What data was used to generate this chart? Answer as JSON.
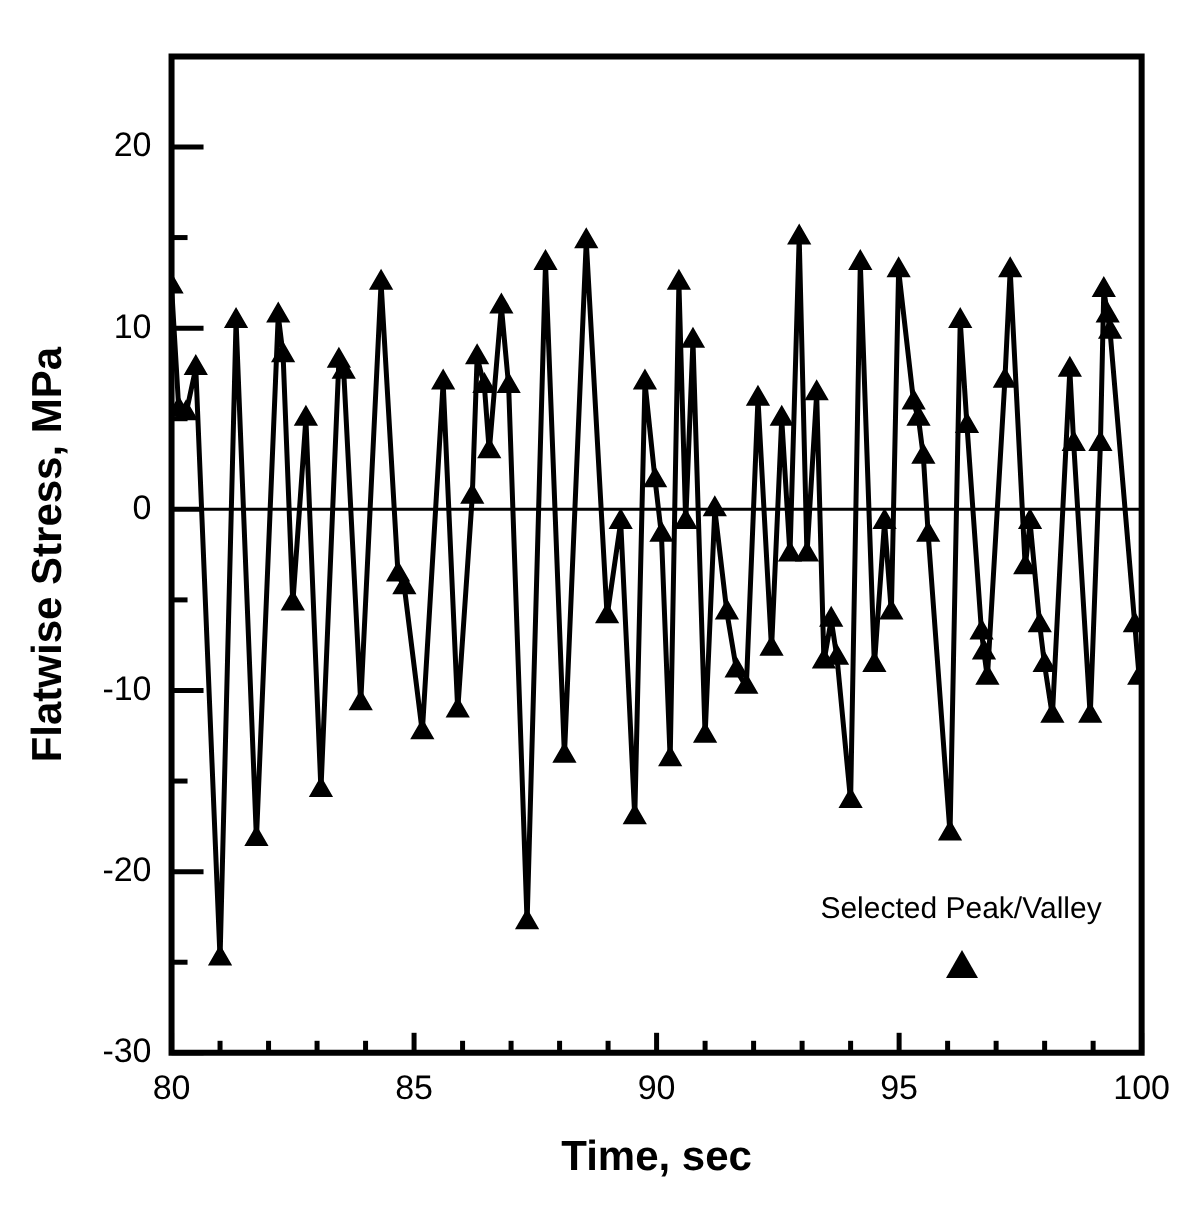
{
  "chart_data": {
    "type": "line",
    "xlabel": "Time, sec",
    "ylabel": "Flatwise Stress, MPa",
    "xlim": [
      80,
      100
    ],
    "xticks": [
      80,
      {
        "value": 81,
        "label": null
      },
      {
        "value": 82,
        "label": null
      },
      {
        "value": 83,
        "label": null
      },
      {
        "value": 84,
        "label": null
      },
      85,
      {
        "value": 86,
        "label": null
      },
      {
        "value": 87,
        "label": null
      },
      {
        "value": 88,
        "label": null
      },
      {
        "value": 89,
        "label": null
      },
      90,
      {
        "value": 91,
        "label": null
      },
      {
        "value": 92,
        "label": null
      },
      {
        "value": 93,
        "label": null
      },
      {
        "value": 94,
        "label": null
      },
      95,
      {
        "value": 96,
        "label": null
      },
      {
        "value": 97,
        "label": null
      },
      {
        "value": 98,
        "label": null
      },
      {
        "value": 99,
        "label": null
      },
      100
    ],
    "ylim": [
      -30,
      25
    ],
    "yticks": [
      -30,
      {
        "value": -25,
        "label": null
      },
      -20,
      {
        "value": -15,
        "label": null
      },
      -10,
      {
        "value": -5,
        "label": null
      },
      0,
      {
        "value": 5,
        "label": null
      },
      10,
      {
        "value": 15,
        "label": null
      },
      20
    ],
    "ref_lines": [
      {
        "axis": "y",
        "value": 0,
        "color": "#000000"
      }
    ],
    "legend": "bottom right",
    "marker": "triangle",
    "line_style": "solid",
    "grid": false,
    "series": [
      {
        "name": "Selected Peak/Valley",
        "color": "#000000",
        "x": [
          80.0,
          80.15,
          80.3,
          80.5,
          81.0,
          81.33,
          81.75,
          82.2,
          82.3,
          82.5,
          82.77,
          83.08,
          83.45,
          83.55,
          83.9,
          84.32,
          84.67,
          84.8,
          85.17,
          85.6,
          85.9,
          86.2,
          86.3,
          86.45,
          86.55,
          86.8,
          86.95,
          87.33,
          87.71,
          88.1,
          88.55,
          88.98,
          89.26,
          89.55,
          89.76,
          89.97,
          90.1,
          90.28,
          90.46,
          90.6,
          90.75,
          91.0,
          91.2,
          91.45,
          91.65,
          91.85,
          92.09,
          92.37,
          92.58,
          92.75,
          92.94,
          93.1,
          93.3,
          93.45,
          93.6,
          93.72,
          94.0,
          94.2,
          94.49,
          94.7,
          94.84,
          94.99,
          95.3,
          95.4,
          95.5,
          95.6,
          96.05,
          96.26,
          96.4,
          96.7,
          96.75,
          96.82,
          97.18,
          97.29,
          97.6,
          97.7,
          97.9,
          98.0,
          98.16,
          98.52,
          98.6,
          98.94,
          99.15,
          99.22,
          99.3,
          99.35,
          99.86,
          99.95
        ],
        "values": [
          12.3,
          5.5,
          5.3,
          7.8,
          -24.8,
          10.4,
          -18.2,
          10.7,
          8.5,
          -5.2,
          5.0,
          -15.5,
          8.2,
          7.6,
          -10.7,
          12.5,
          -3.6,
          -4.3,
          -12.3,
          7.0,
          -11.1,
          0.7,
          8.4,
          6.8,
          3.2,
          11.2,
          6.8,
          -22.8,
          13.6,
          -13.6,
          14.8,
          -5.9,
          -0.7,
          -17.0,
          7.0,
          1.6,
          -1.4,
          -13.8,
          12.5,
          -0.7,
          9.3,
          -12.5,
          0,
          -5.7,
          -8.9,
          -9.8,
          6.1,
          -7.7,
          5.0,
          -2.5,
          15.0,
          -2.5,
          6.4,
          -8.4,
          -6.1,
          -8.2,
          -16.1,
          13.6,
          -8.6,
          -0.7,
          -5.7,
          13.2,
          5.9,
          5.0,
          2.9,
          -1.4,
          -17.9,
          10.4,
          4.6,
          -6.8,
          -7.9,
          -9.3,
          7.1,
          13.2,
          -3.2,
          -0.7,
          -6.4,
          -8.6,
          -11.4,
          7.7,
          3.6,
          -11.4,
          3.6,
          12.1,
          10.7,
          9.8,
          -6.4,
          -9.3
        ]
      }
    ]
  }
}
